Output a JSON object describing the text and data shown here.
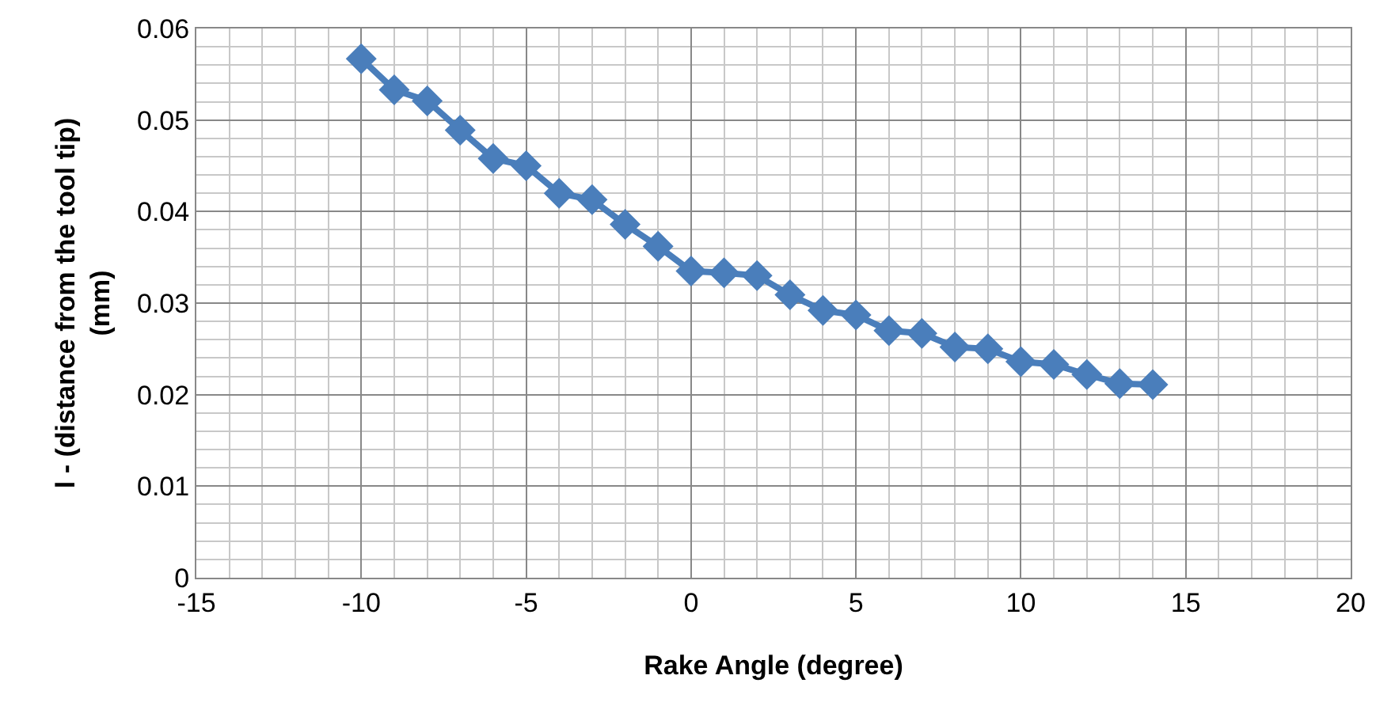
{
  "chart_data": {
    "type": "line",
    "xlabel": "Rake Angle (degree)",
    "ylabel": "l - (distance from the tool tip)\n(mm)",
    "x": [
      -10,
      -9,
      -8,
      -7,
      -6,
      -5,
      -4,
      -3,
      -2,
      -1,
      0,
      1,
      2,
      3,
      4,
      5,
      6,
      7,
      8,
      9,
      10,
      11,
      12,
      13,
      14
    ],
    "series": [
      {
        "color": "#4a7ebb",
        "values": [
          0.0567,
          0.0533,
          0.0521,
          0.0489,
          0.0458,
          0.045,
          0.042,
          0.0413,
          0.0386,
          0.0362,
          0.0335,
          0.0333,
          0.033,
          0.0309,
          0.0292,
          0.0287,
          0.027,
          0.0267,
          0.0252,
          0.025,
          0.0236,
          0.0233,
          0.0222,
          0.0212,
          0.0211
        ]
      }
    ],
    "xlim": [
      -15,
      20
    ],
    "xticks": [
      -15,
      -10,
      -5,
      0,
      5,
      10,
      15,
      20
    ],
    "ylim": [
      0,
      0.06
    ],
    "yticks": [
      0,
      0.01,
      0.02,
      0.03,
      0.04,
      0.05,
      0.06
    ],
    "grid": true,
    "marker": "diamond",
    "line_style": "solid",
    "legend": false
  }
}
